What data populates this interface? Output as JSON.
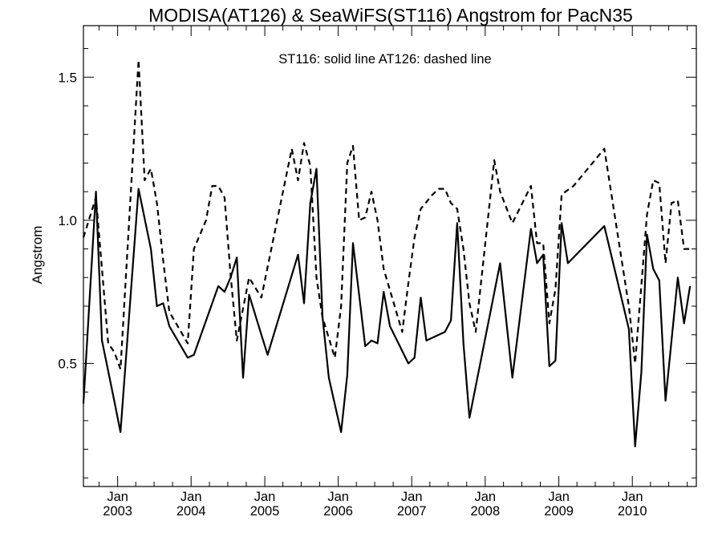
{
  "chart_data": {
    "type": "line",
    "title": "MODISA(AT126) & SeaWiFS(ST116)  Angstrom for PacN35",
    "annotation": "ST116: solid line   AT126: dashed line",
    "xlabel": "",
    "ylabel": "Angstrom",
    "xlim": [
      "2002-07-15",
      "2010-11-15"
    ],
    "ylim": [
      0.07,
      1.68
    ],
    "x_ticks": [
      {
        "date": "2003-01-01",
        "month": "Jan",
        "year": "2003"
      },
      {
        "date": "2004-01-01",
        "month": "Jan",
        "year": "2004"
      },
      {
        "date": "2005-01-01",
        "month": "Jan",
        "year": "2005"
      },
      {
        "date": "2006-01-01",
        "month": "Jan",
        "year": "2006"
      },
      {
        "date": "2007-01-01",
        "month": "Jan",
        "year": "2007"
      },
      {
        "date": "2008-01-01",
        "month": "Jan",
        "year": "2008"
      },
      {
        "date": "2009-01-01",
        "month": "Jan",
        "year": "2009"
      },
      {
        "date": "2010-01-01",
        "month": "Jan",
        "year": "2010"
      }
    ],
    "y_ticks": [
      {
        "value": 0.5,
        "label": "0.5"
      },
      {
        "value": 1.0,
        "label": "1.0"
      },
      {
        "value": 1.5,
        "label": "1.5"
      }
    ],
    "series": [
      {
        "style": "solid",
        "points": [
          [
            "2002-07-15",
            0.36
          ],
          [
            "2002-09-15",
            1.1
          ],
          [
            "2002-10-15",
            0.58
          ],
          [
            "2002-12-15",
            0.37
          ],
          [
            "2003-01-15",
            0.26
          ],
          [
            "2003-04-15",
            1.11
          ],
          [
            "2003-06-15",
            0.9
          ],
          [
            "2003-07-15",
            0.7
          ],
          [
            "2003-08-15",
            0.71
          ],
          [
            "2003-09-15",
            0.63
          ],
          [
            "2003-12-15",
            0.52
          ],
          [
            "2004-01-15",
            0.53
          ],
          [
            "2004-05-15",
            0.77
          ],
          [
            "2004-06-15",
            0.75
          ],
          [
            "2004-07-15",
            0.8
          ],
          [
            "2004-08-15",
            0.87
          ],
          [
            "2004-09-15",
            0.45
          ],
          [
            "2004-10-15",
            0.74
          ],
          [
            "2004-12-15",
            0.6
          ],
          [
            "2005-01-15",
            0.53
          ],
          [
            "2005-06-15",
            0.88
          ],
          [
            "2005-07-15",
            0.71
          ],
          [
            "2005-08-15",
            1.06
          ],
          [
            "2005-09-15",
            1.18
          ],
          [
            "2005-10-15",
            0.66
          ],
          [
            "2005-11-15",
            0.45
          ],
          [
            "2006-01-15",
            0.26
          ],
          [
            "2006-02-15",
            0.46
          ],
          [
            "2006-03-15",
            0.92
          ],
          [
            "2006-05-15",
            0.56
          ],
          [
            "2006-06-15",
            0.58
          ],
          [
            "2006-07-15",
            0.57
          ],
          [
            "2006-08-15",
            0.75
          ],
          [
            "2006-09-15",
            0.63
          ],
          [
            "2006-12-15",
            0.5
          ],
          [
            "2007-01-15",
            0.52
          ],
          [
            "2007-02-15",
            0.73
          ],
          [
            "2007-03-15",
            0.58
          ],
          [
            "2007-06-15",
            0.61
          ],
          [
            "2007-07-15",
            0.65
          ],
          [
            "2007-08-15",
            0.99
          ],
          [
            "2007-09-15",
            0.57
          ],
          [
            "2007-10-15",
            0.31
          ],
          [
            "2008-03-15",
            0.85
          ],
          [
            "2008-05-15",
            0.45
          ],
          [
            "2008-08-15",
            0.97
          ],
          [
            "2008-09-15",
            0.85
          ],
          [
            "2008-10-15",
            0.88
          ],
          [
            "2008-11-15",
            0.49
          ],
          [
            "2008-12-15",
            0.51
          ],
          [
            "2009-01-15",
            0.99
          ],
          [
            "2009-02-15",
            0.85
          ],
          [
            "2009-08-15",
            0.98
          ],
          [
            "2009-12-15",
            0.62
          ],
          [
            "2010-01-15",
            0.21
          ],
          [
            "2010-02-15",
            0.47
          ],
          [
            "2010-03-15",
            0.95
          ],
          [
            "2010-04-15",
            0.83
          ],
          [
            "2010-05-15",
            0.79
          ],
          [
            "2010-06-15",
            0.37
          ],
          [
            "2010-08-15",
            0.8
          ],
          [
            "2010-09-15",
            0.64
          ],
          [
            "2010-10-15",
            0.77
          ]
        ]
      },
      {
        "style": "dashed",
        "points": [
          [
            "2002-07-15",
            0.94
          ],
          [
            "2002-09-15",
            1.08
          ],
          [
            "2002-11-15",
            0.57
          ],
          [
            "2002-12-15",
            0.54
          ],
          [
            "2003-01-15",
            0.48
          ],
          [
            "2003-04-15",
            1.56
          ],
          [
            "2003-05-15",
            1.14
          ],
          [
            "2003-06-15",
            1.18
          ],
          [
            "2003-07-15",
            1.06
          ],
          [
            "2003-08-15",
            0.86
          ],
          [
            "2003-09-15",
            0.68
          ],
          [
            "2003-12-15",
            0.57
          ],
          [
            "2004-01-15",
            0.9
          ],
          [
            "2004-03-15",
            1.0
          ],
          [
            "2004-04-15",
            1.12
          ],
          [
            "2004-05-15",
            1.12
          ],
          [
            "2004-06-15",
            1.08
          ],
          [
            "2004-07-15",
            0.81
          ],
          [
            "2004-08-15",
            0.58
          ],
          [
            "2004-10-15",
            0.8
          ],
          [
            "2004-12-15",
            0.73
          ],
          [
            "2005-05-15",
            1.25
          ],
          [
            "2005-06-15",
            1.14
          ],
          [
            "2005-07-15",
            1.27
          ],
          [
            "2005-08-15",
            1.19
          ],
          [
            "2005-09-15",
            0.8
          ],
          [
            "2005-10-15",
            0.66
          ],
          [
            "2005-12-15",
            0.52
          ],
          [
            "2006-01-15",
            0.7
          ],
          [
            "2006-02-15",
            1.2
          ],
          [
            "2006-03-15",
            1.26
          ],
          [
            "2006-04-15",
            1.0
          ],
          [
            "2006-05-15",
            1.01
          ],
          [
            "2006-06-15",
            1.1
          ],
          [
            "2006-07-15",
            1.0
          ],
          [
            "2006-08-15",
            0.83
          ],
          [
            "2006-11-15",
            0.61
          ],
          [
            "2006-12-15",
            0.78
          ],
          [
            "2007-01-15",
            0.94
          ],
          [
            "2007-02-15",
            1.04
          ],
          [
            "2007-04-15",
            1.09
          ],
          [
            "2007-05-15",
            1.11
          ],
          [
            "2007-06-15",
            1.11
          ],
          [
            "2007-07-15",
            1.06
          ],
          [
            "2007-08-15",
            1.04
          ],
          [
            "2007-09-15",
            0.9
          ],
          [
            "2007-10-15",
            0.71
          ],
          [
            "2007-11-15",
            0.61
          ],
          [
            "2008-02-15",
            1.21
          ],
          [
            "2008-03-15",
            1.1
          ],
          [
            "2008-05-15",
            0.99
          ],
          [
            "2008-08-15",
            1.12
          ],
          [
            "2008-09-15",
            0.92
          ],
          [
            "2008-10-15",
            0.92
          ],
          [
            "2008-11-15",
            0.64
          ],
          [
            "2008-12-15",
            0.76
          ],
          [
            "2009-01-15",
            1.09
          ],
          [
            "2009-03-15",
            1.12
          ],
          [
            "2009-08-15",
            1.25
          ],
          [
            "2009-12-15",
            0.7
          ],
          [
            "2010-01-15",
            0.5
          ],
          [
            "2010-03-15",
            1.02
          ],
          [
            "2010-04-15",
            1.14
          ],
          [
            "2010-05-15",
            1.13
          ],
          [
            "2010-06-15",
            0.85
          ],
          [
            "2010-07-15",
            1.06
          ],
          [
            "2010-08-15",
            1.07
          ],
          [
            "2010-09-15",
            0.9
          ],
          [
            "2010-10-15",
            0.9
          ]
        ]
      }
    ]
  }
}
